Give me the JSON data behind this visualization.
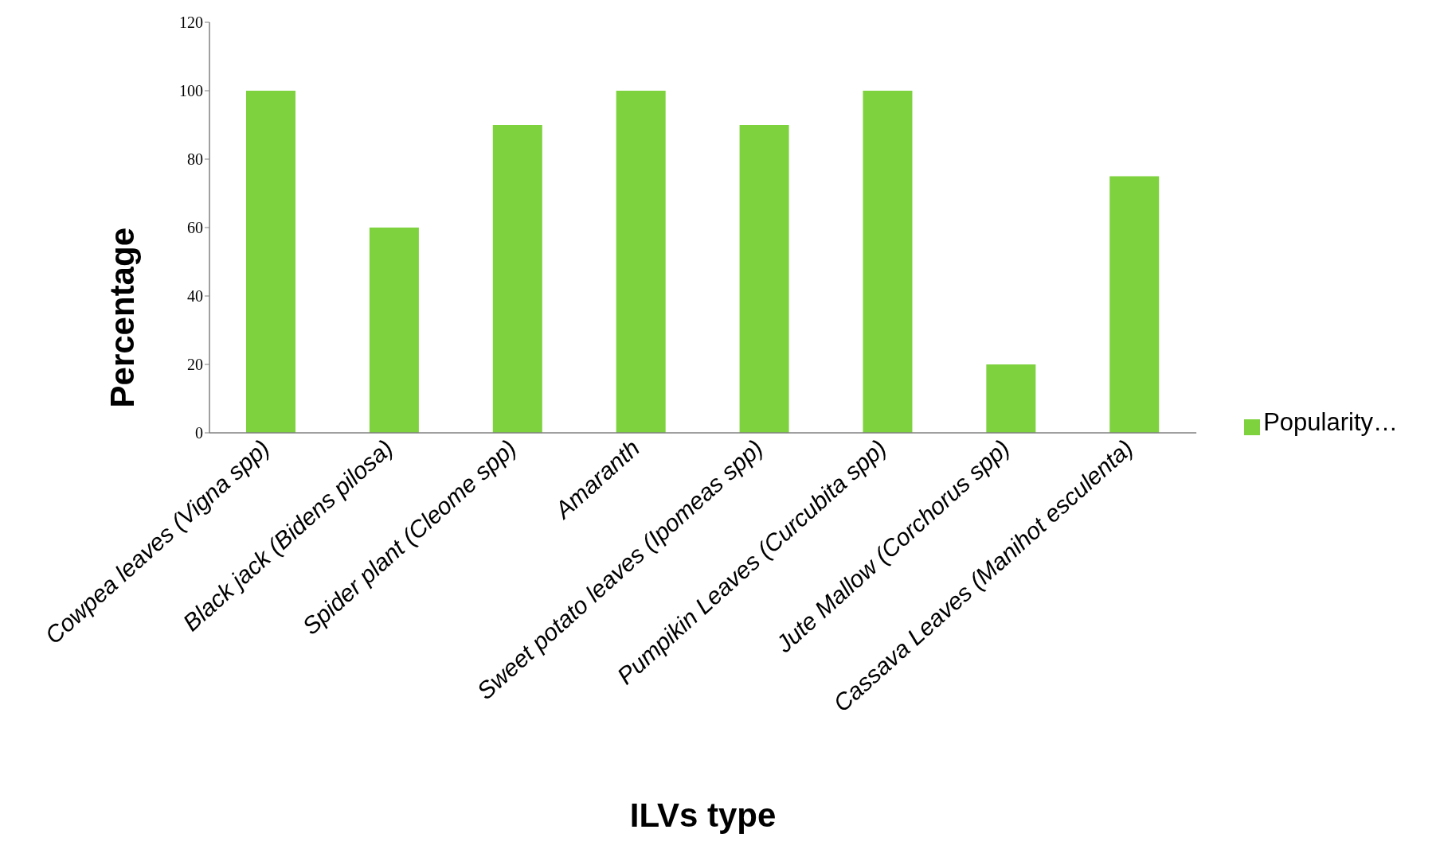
{
  "chart_data": {
    "type": "bar",
    "xlabel": "ILVs type",
    "ylabel": "Percentage",
    "categories": [
      "Cowpea leaves (Vigna spp)",
      "Black jack (Bidens pilosa)",
      "Spider plant (Cleome spp)",
      "Amaranth",
      "Sweet potato leaves (Ipomeas spp)",
      "Pumpikin Leaves (Curcubita spp)",
      "Jute Mallow (Corchorus spp)",
      "Cassava Leaves (Manihot esculenta)"
    ],
    "series": [
      {
        "name": "Popularity…",
        "color": "#7ed23e",
        "values": [
          100,
          60,
          90,
          100,
          90,
          100,
          20,
          75
        ]
      }
    ],
    "ylim": [
      0,
      120
    ],
    "yticks": [
      0,
      20,
      40,
      60,
      80,
      100,
      120
    ],
    "grid": false,
    "legend": "right"
  }
}
